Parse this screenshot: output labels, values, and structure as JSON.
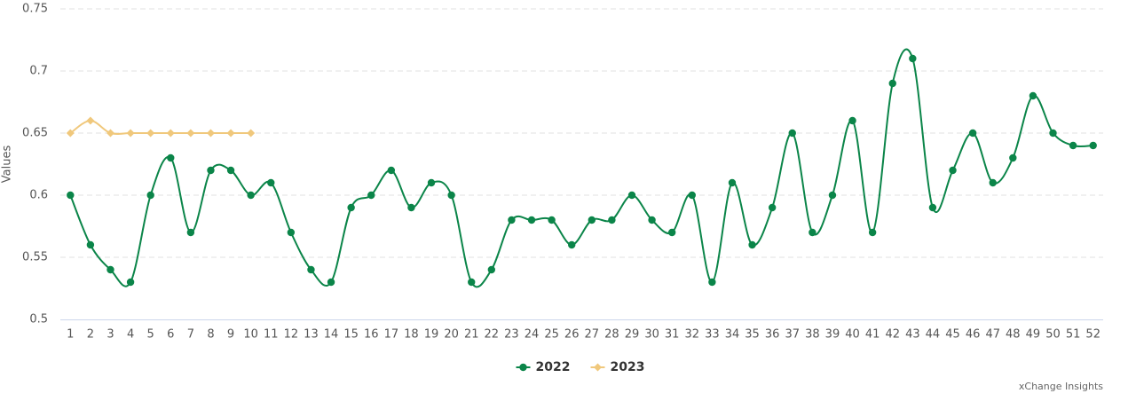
{
  "chart_data": {
    "type": "line",
    "y_label": "Values",
    "x": [
      1,
      2,
      3,
      4,
      5,
      6,
      7,
      8,
      9,
      10,
      11,
      12,
      13,
      14,
      15,
      16,
      17,
      18,
      19,
      20,
      21,
      22,
      23,
      24,
      25,
      26,
      27,
      28,
      29,
      30,
      31,
      32,
      33,
      34,
      35,
      36,
      37,
      38,
      39,
      40,
      41,
      42,
      43,
      44,
      45,
      46,
      47,
      48,
      49,
      50,
      51,
      52
    ],
    "series": [
      {
        "name": "2022",
        "color": "#0b8549",
        "marker": "circle",
        "values": [
          0.6,
          0.56,
          0.54,
          0.53,
          0.6,
          0.63,
          0.57,
          0.62,
          0.62,
          0.6,
          0.61,
          0.57,
          0.54,
          0.53,
          0.59,
          0.6,
          0.62,
          0.59,
          0.61,
          0.6,
          0.53,
          0.54,
          0.58,
          0.58,
          0.58,
          0.56,
          0.58,
          0.58,
          0.6,
          0.58,
          0.57,
          0.6,
          0.53,
          0.61,
          0.56,
          0.59,
          0.65,
          0.57,
          0.6,
          0.66,
          0.57,
          0.69,
          0.71,
          0.59,
          0.62,
          0.65,
          0.61,
          0.63,
          0.68,
          0.65,
          0.64,
          0.64
        ]
      },
      {
        "name": "2023",
        "color": "#f0c87c",
        "marker": "diamond",
        "values": [
          0.65,
          0.66,
          0.65,
          0.65,
          0.65,
          0.65,
          0.65,
          0.65,
          0.65,
          0.65,
          null,
          null,
          null,
          null,
          null,
          null,
          null,
          null,
          null,
          null,
          null,
          null,
          null,
          null,
          null,
          null,
          null,
          null,
          null,
          null,
          null,
          null,
          null,
          null,
          null,
          null,
          null,
          null,
          null,
          null,
          null,
          null,
          null,
          null,
          null,
          null,
          null,
          null,
          null,
          null,
          null,
          null
        ]
      }
    ],
    "ylim": [
      0.5,
      0.75
    ],
    "yticks": [
      0.5,
      0.55,
      0.6,
      0.65,
      0.7,
      0.75
    ],
    "grid": true,
    "legend": "bottom",
    "credit": "xChange Insights"
  }
}
